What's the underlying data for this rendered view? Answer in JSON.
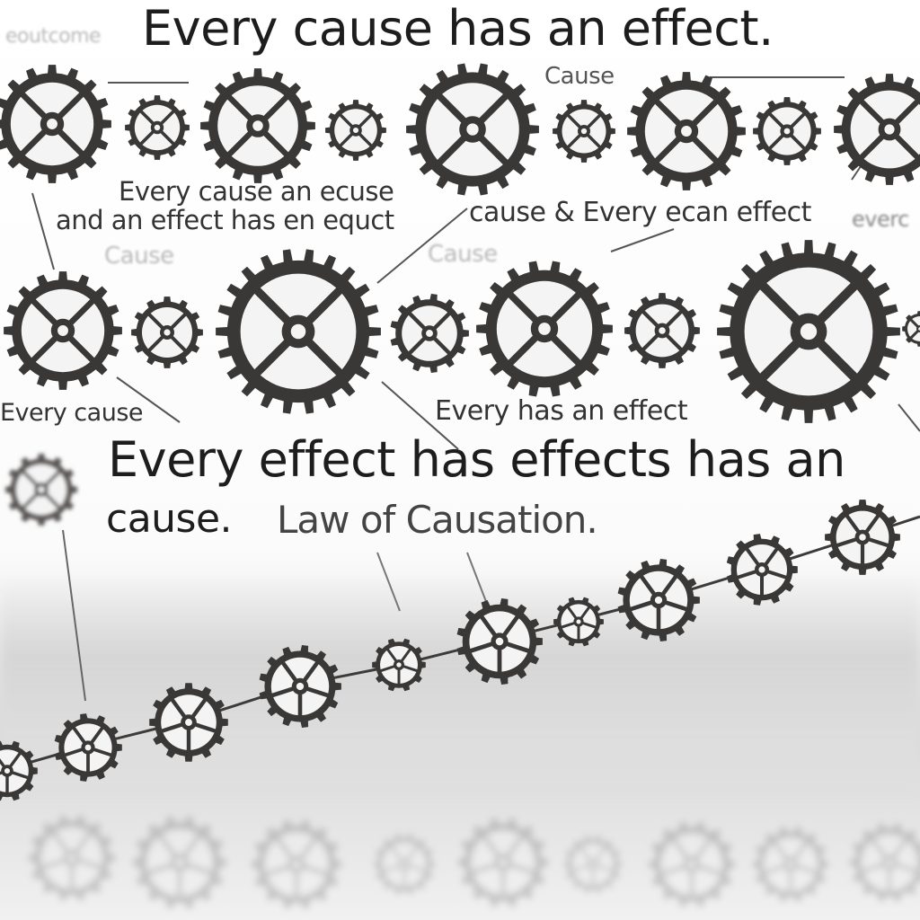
{
  "texts": {
    "headline": "Every cause has an effect.",
    "top_left_faint": "eoutcome",
    "cause_label": "Cause",
    "line_a1": "Every cause an ecuse",
    "line_a2": "and an effect has en equct",
    "line_b": "cause & Every ecan effect",
    "edge_every": "everc",
    "faint_cause_left": "Cause",
    "faint_cause_mid": "Cause",
    "row3_left": "Every cause",
    "row3_mid": "Every has an effect",
    "main_line1": "Every effect has effects has an",
    "main_line2": "cause.",
    "main_line2b": "Law of Causation."
  },
  "colors": {
    "gear": "#3a3836",
    "gear_light": "#5a5754",
    "text_dark": "#1d1d1d",
    "background": "#ffffff"
  },
  "icons": [
    "gear-icon",
    "connector-line",
    "chain-link"
  ]
}
